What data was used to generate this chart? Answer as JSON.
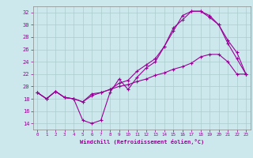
{
  "xlabel": "Windchill (Refroidissement éolien,°C)",
  "bg_color": "#cce8ec",
  "grid_color": "#aacccc",
  "line_color": "#990099",
  "xlim": [
    -0.5,
    23.5
  ],
  "ylim": [
    13,
    33
  ],
  "yticks": [
    14,
    16,
    18,
    20,
    22,
    24,
    26,
    28,
    30,
    32
  ],
  "xticks": [
    0,
    1,
    2,
    3,
    4,
    5,
    6,
    7,
    8,
    9,
    10,
    11,
    12,
    13,
    14,
    15,
    16,
    17,
    18,
    19,
    20,
    21,
    22,
    23
  ],
  "line1_x": [
    0,
    1,
    2,
    3,
    4,
    5,
    6,
    7,
    8,
    9,
    10,
    11,
    12,
    13,
    14,
    15,
    16,
    17,
    18,
    19,
    20,
    21,
    22,
    23
  ],
  "line1_y": [
    19.0,
    18.0,
    19.2,
    18.2,
    18.0,
    14.5,
    14.0,
    14.5,
    19.0,
    21.2,
    19.5,
    21.5,
    23.0,
    24.0,
    26.5,
    29.0,
    31.5,
    32.2,
    32.2,
    31.5,
    30.0,
    27.0,
    24.5,
    22.0
  ],
  "line2_x": [
    0,
    1,
    2,
    3,
    4,
    5,
    6,
    7,
    8,
    9,
    10,
    11,
    12,
    13,
    14,
    15,
    16,
    17,
    18,
    19,
    20,
    21,
    22,
    23
  ],
  "line2_y": [
    19.0,
    18.0,
    19.2,
    18.2,
    18.0,
    17.5,
    18.8,
    19.0,
    19.5,
    20.0,
    20.3,
    20.8,
    21.2,
    21.8,
    22.2,
    22.8,
    23.2,
    23.8,
    24.8,
    25.2,
    25.2,
    24.0,
    22.0,
    22.0
  ],
  "line3_x": [
    0,
    1,
    2,
    3,
    4,
    5,
    6,
    7,
    8,
    9,
    10,
    11,
    12,
    13,
    14,
    15,
    16,
    17,
    18,
    19,
    20,
    21,
    22,
    23
  ],
  "line3_y": [
    19.0,
    18.0,
    19.2,
    18.2,
    18.0,
    17.5,
    18.5,
    19.0,
    19.5,
    20.5,
    21.0,
    22.5,
    23.5,
    24.5,
    26.5,
    29.5,
    30.8,
    32.2,
    32.2,
    31.2,
    30.0,
    27.5,
    25.5,
    22.0
  ]
}
